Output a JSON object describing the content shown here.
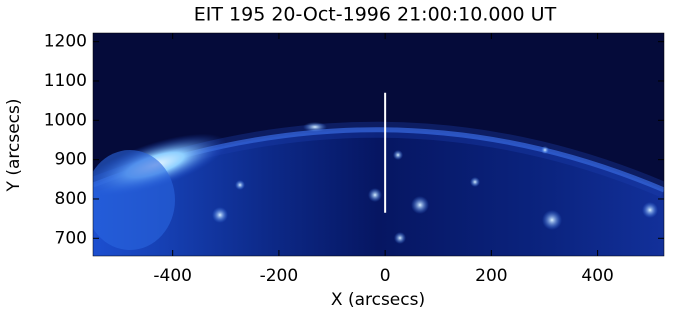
{
  "chart_data": {
    "type": "image",
    "title": "EIT 195 20-Oct-1996 21:00:10.000 UT",
    "x_label": "X (arcsecs)",
    "y_label": "Y (arcsecs)",
    "xlim": [
      -550,
      525
    ],
    "ylim": [
      655,
      1222
    ],
    "xticks": [
      -400,
      -200,
      0,
      200,
      400
    ],
    "yticks": [
      700,
      800,
      900,
      1000,
      1100,
      1200
    ],
    "line": {
      "x": [
        0,
        0
      ],
      "y": [
        765,
        1070
      ],
      "color": "#ffffff"
    }
  }
}
